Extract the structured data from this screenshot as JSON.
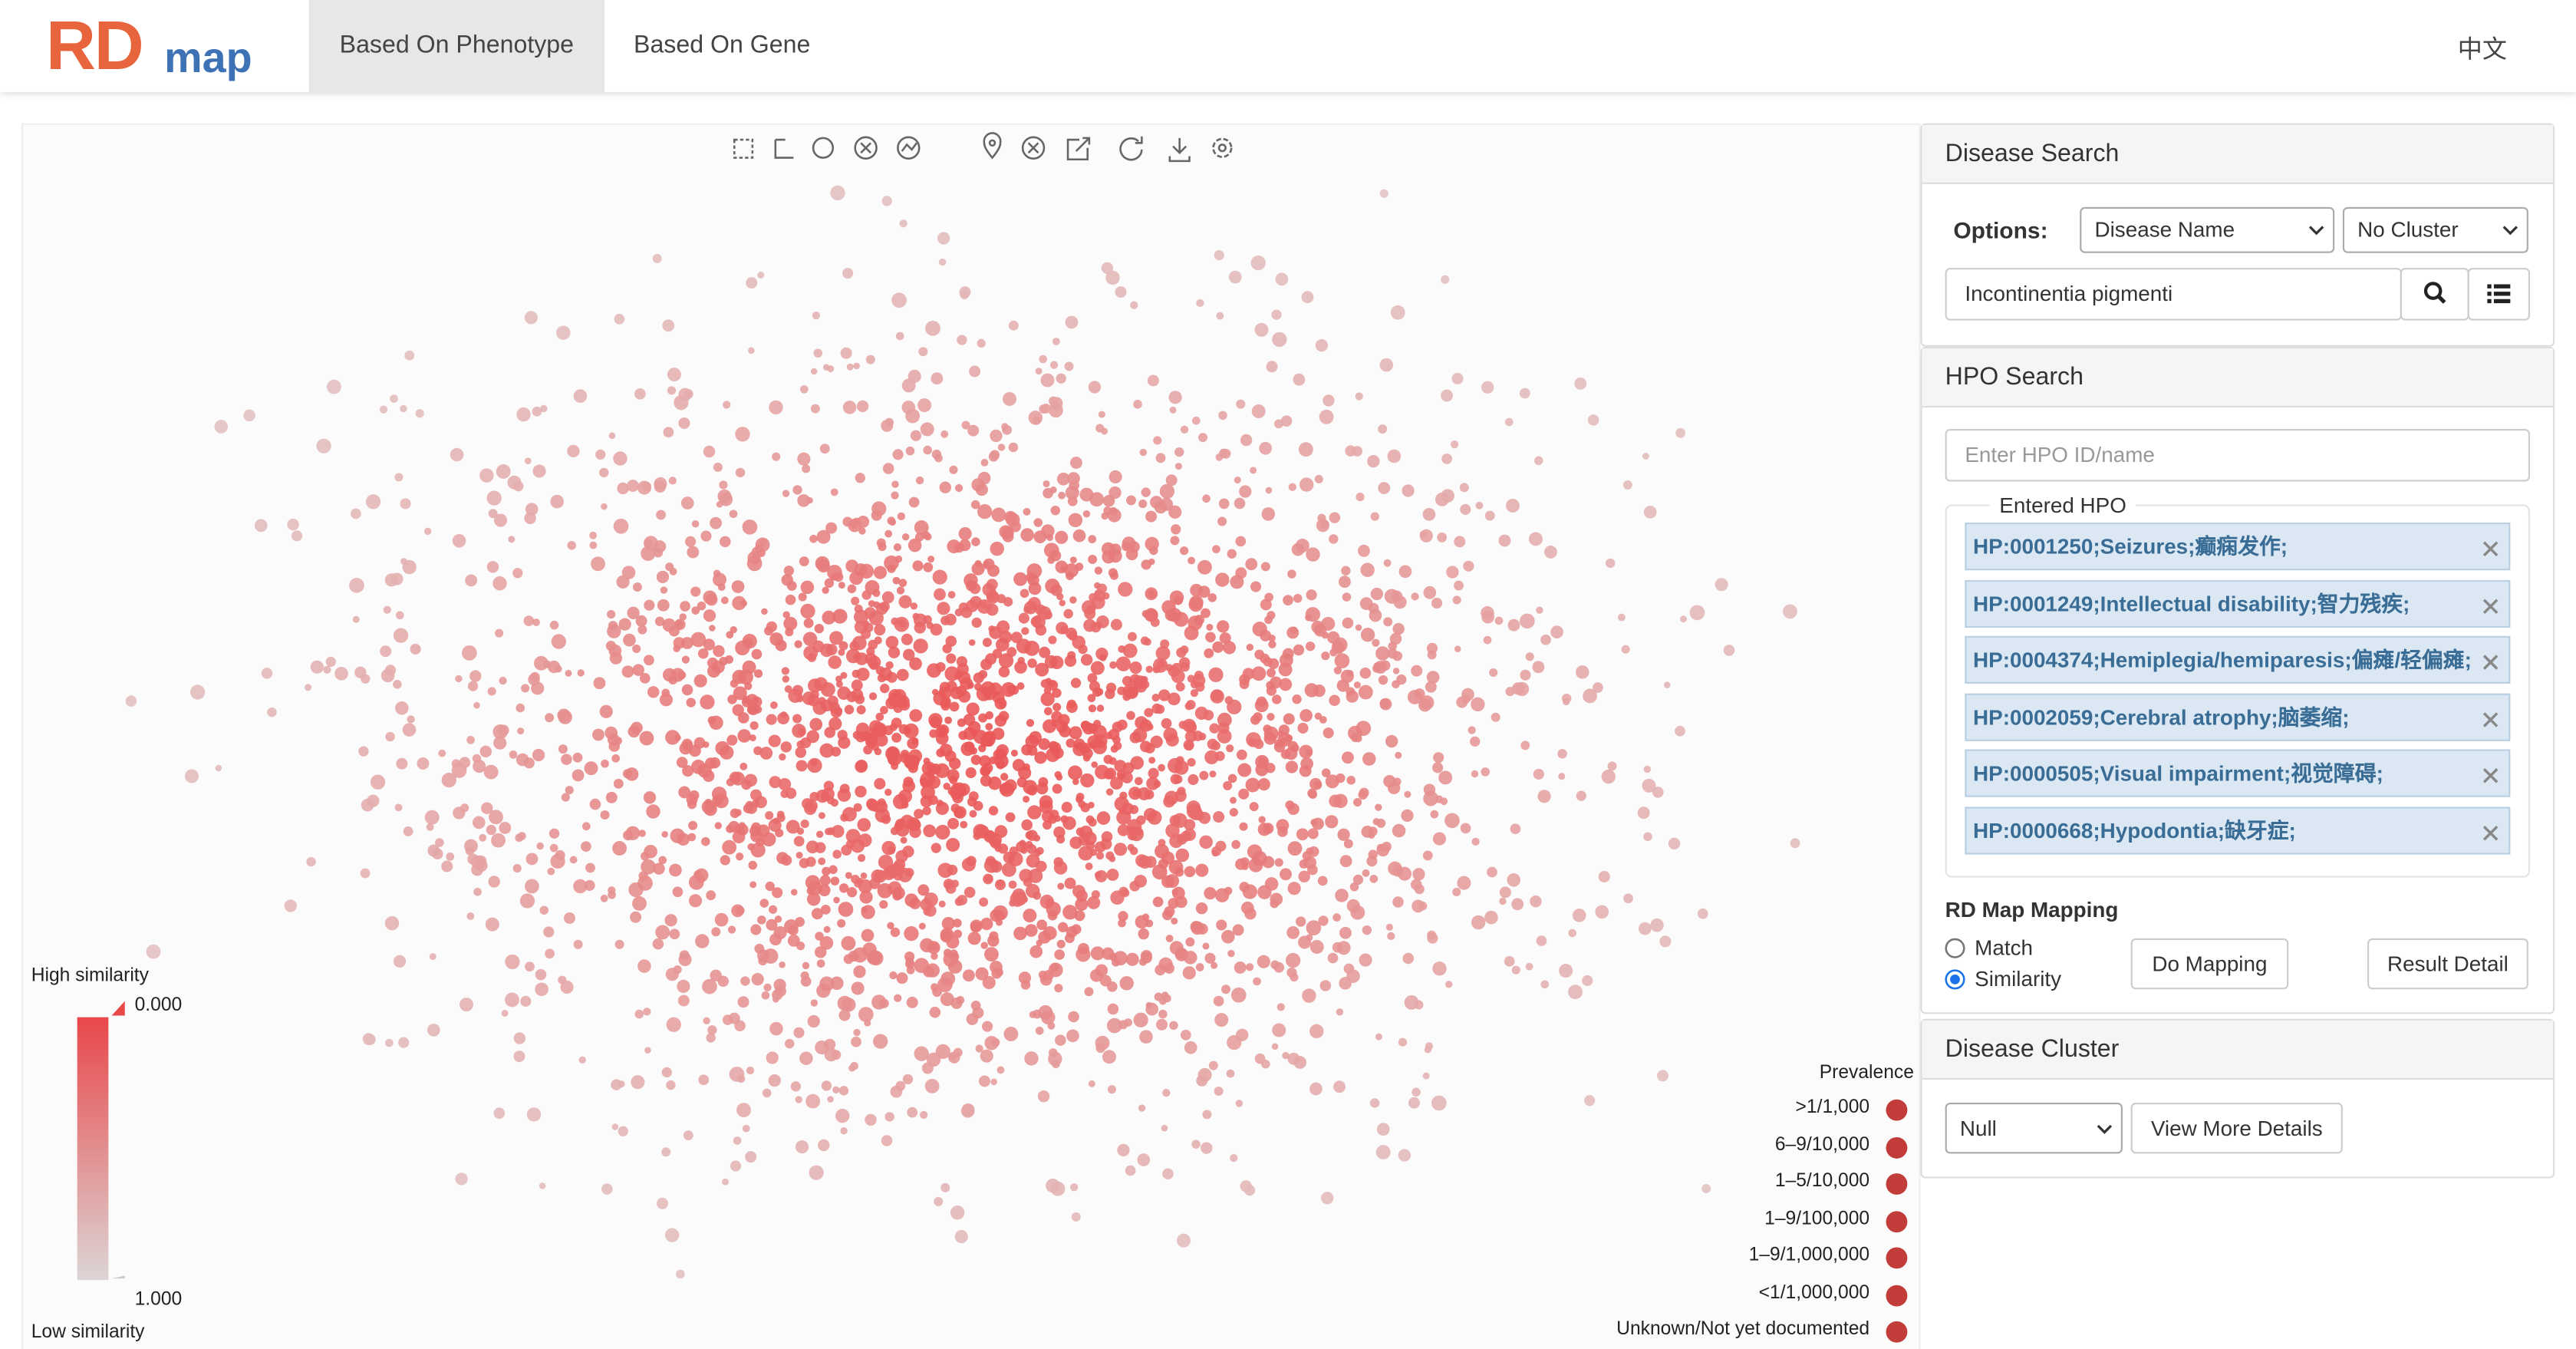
{
  "header": {
    "logo_main": "RD",
    "logo_sub": "map",
    "tabs": [
      "Based On Phenotype",
      "Based On Gene"
    ],
    "active_tab": 0,
    "language": "中文"
  },
  "similarity_legend": {
    "high": "High similarity",
    "low": "Low similarity",
    "top_value": "0.000",
    "bottom_value": "1.000"
  },
  "prevalence": {
    "title": "Prevalence",
    "items": [
      ">1/1,000",
      "6–9/10,000",
      "1–5/10,000",
      "1–9/100,000",
      "1–9/1,000,000",
      "<1/1,000,000",
      "Unknown/Not yet documented"
    ],
    "color": "#c23d3a"
  },
  "disease_search": {
    "title": "Disease Search",
    "options_label": "Options:",
    "option_select": "Disease Name",
    "cluster_select": "No Cluster",
    "query": "Incontinentia pigmenti"
  },
  "hpo_search": {
    "title": "HPO Search",
    "placeholder": "Enter HPO ID/name",
    "entered_title": "Entered HPO",
    "terms": [
      "HP:0001250;Seizures;癫痫发作;",
      "HP:0001249;Intellectual disability;智力残疾;",
      "HP:0004374;Hemiplegia/hemiparesis;偏瘫/轻偏瘫;",
      "HP:0002059;Cerebral atrophy;脑萎缩;",
      "HP:0000505;Visual impairment;视觉障碍;",
      "HP:0000668;Hypodontia;缺牙症;"
    ]
  },
  "mapping": {
    "title": "RD Map Mapping",
    "modes": [
      "Match",
      "Similarity"
    ],
    "selected": 1,
    "buttons": [
      "Do Mapping",
      "Result Detail"
    ]
  },
  "cluster": {
    "title": "Disease Cluster",
    "select": "Null",
    "button": "View More Details"
  }
}
